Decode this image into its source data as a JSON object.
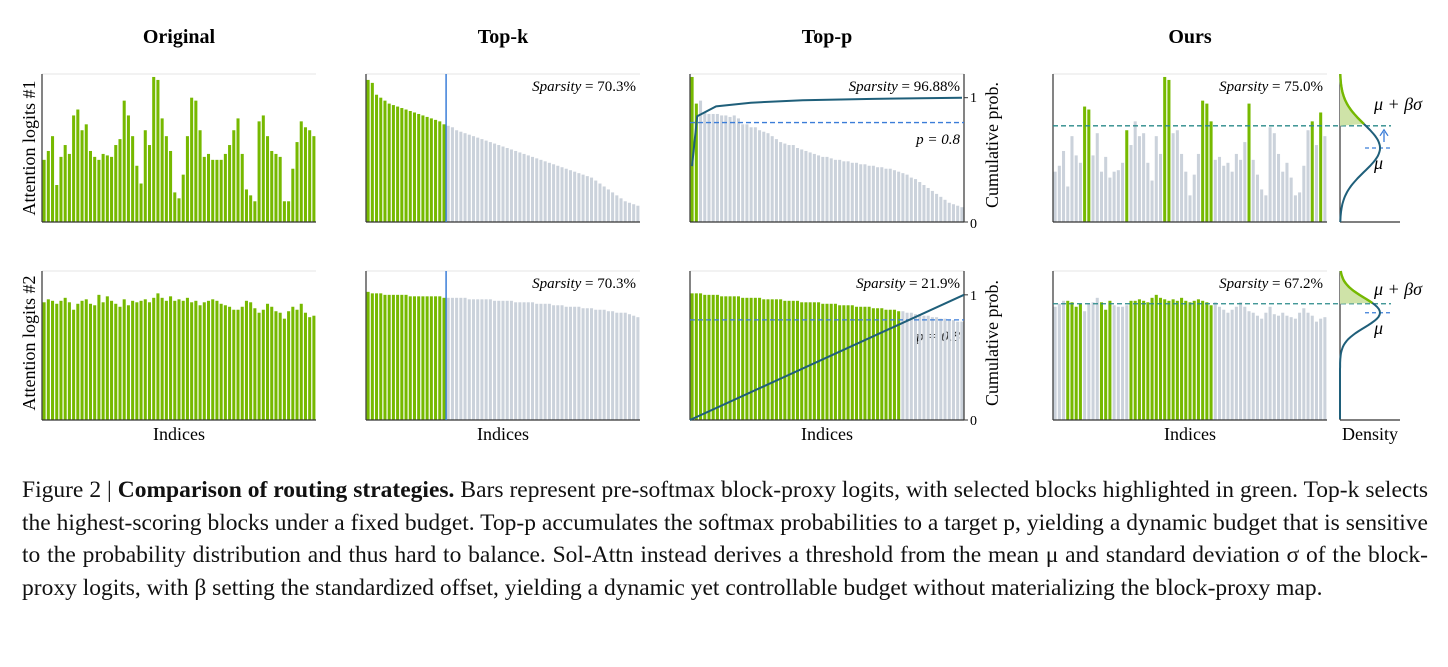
{
  "titles": [
    "Original",
    "Top-k",
    "Top-p",
    "Ours"
  ],
  "row_labels": [
    "Attention logits #1",
    "Attention logits #2"
  ],
  "x_label": "Indices",
  "density_label": "Density",
  "cum_label": "Cumulative prob.",
  "cum_ticks": [
    "0",
    "1"
  ],
  "p_label": "p = 0.8",
  "mu_label": "μ",
  "mu_beta_label": "μ + βσ",
  "colors": {
    "selected": "#76b900",
    "unselected": "#cbd2db",
    "curve": "#1f5f7a",
    "cut": "#3b7dd8"
  },
  "chart_data": [
    {
      "type": "bar",
      "panel": "Original, row 1",
      "values": [
        0.42,
        0.48,
        0.58,
        0.25,
        0.44,
        0.52,
        0.46,
        0.72,
        0.76,
        0.62,
        0.66,
        0.48,
        0.44,
        0.42,
        0.46,
        0.45,
        0.44,
        0.52,
        0.56,
        0.82,
        0.72,
        0.58,
        0.38,
        0.26,
        0.62,
        0.52,
        0.98,
        0.96,
        0.7,
        0.58,
        0.48,
        0.2,
        0.16,
        0.32,
        0.58,
        0.84,
        0.82,
        0.62,
        0.44,
        0.46,
        0.42,
        0.42,
        0.42,
        0.46,
        0.52,
        0.62,
        0.7,
        0.46,
        0.22,
        0.18,
        0.14,
        0.68,
        0.72,
        0.58,
        0.48,
        0.46,
        0.44,
        0.14,
        0.14,
        0.36,
        0.54,
        0.68,
        0.64,
        0.62,
        0.58
      ]
    },
    {
      "type": "bar",
      "panel": "Top-k, row 1",
      "sparsity": "70.3%",
      "values": [
        0.96,
        0.94,
        0.86,
        0.84,
        0.82,
        0.8,
        0.79,
        0.78,
        0.77,
        0.76,
        0.75,
        0.74,
        0.73,
        0.72,
        0.71,
        0.7,
        0.69,
        0.68,
        0.66,
        0.65,
        0.64,
        0.62,
        0.61,
        0.6,
        0.59,
        0.58,
        0.57,
        0.56,
        0.55,
        0.54,
        0.53,
        0.52,
        0.51,
        0.5,
        0.49,
        0.48,
        0.47,
        0.46,
        0.45,
        0.44,
        0.43,
        0.42,
        0.41,
        0.4,
        0.39,
        0.38,
        0.37,
        0.36,
        0.35,
        0.34,
        0.33,
        0.32,
        0.31,
        0.3,
        0.28,
        0.26,
        0.24,
        0.22,
        0.2,
        0.18,
        0.16,
        0.14,
        0.13,
        0.12,
        0.11
      ]
    },
    {
      "type": "bar",
      "panel": "Top-p, row 1",
      "sparsity": "96.88%",
      "values": [
        0.98,
        0.8,
        0.82,
        0.74,
        0.73,
        0.73,
        0.73,
        0.72,
        0.72,
        0.71,
        0.72,
        0.7,
        0.66,
        0.66,
        0.64,
        0.64,
        0.62,
        0.61,
        0.6,
        0.58,
        0.56,
        0.54,
        0.53,
        0.52,
        0.52,
        0.5,
        0.49,
        0.48,
        0.47,
        0.46,
        0.45,
        0.44,
        0.44,
        0.43,
        0.42,
        0.42,
        0.41,
        0.41,
        0.4,
        0.4,
        0.39,
        0.39,
        0.38,
        0.38,
        0.37,
        0.37,
        0.36,
        0.36,
        0.35,
        0.34,
        0.33,
        0.32,
        0.3,
        0.29,
        0.27,
        0.25,
        0.23,
        0.21,
        0.19,
        0.17,
        0.15,
        0.13,
        0.12,
        0.11,
        0.1
      ],
      "cumulative": [
        0.45,
        0.85,
        0.93,
        0.96,
        0.98,
        0.99,
        1.0
      ],
      "p_threshold": 0.8
    },
    {
      "type": "bar",
      "panel": "Ours, row 1",
      "sparsity": "75.0%",
      "values": [
        0.34,
        0.38,
        0.48,
        0.24,
        0.58,
        0.45,
        0.4,
        0.78,
        0.76,
        0.45,
        0.6,
        0.34,
        0.44,
        0.3,
        0.34,
        0.35,
        0.4,
        0.62,
        0.52,
        0.68,
        0.58,
        0.6,
        0.4,
        0.28,
        0.58,
        0.46,
        0.98,
        0.96,
        0.6,
        0.62,
        0.46,
        0.34,
        0.18,
        0.32,
        0.46,
        0.82,
        0.8,
        0.68,
        0.42,
        0.44,
        0.38,
        0.4,
        0.34,
        0.46,
        0.42,
        0.54,
        0.8,
        0.42,
        0.32,
        0.22,
        0.18,
        0.64,
        0.6,
        0.46,
        0.34,
        0.4,
        0.3,
        0.18,
        0.2,
        0.38,
        0.62,
        0.68,
        0.52,
        0.74,
        0.58
      ],
      "selected": [
        7,
        8,
        17,
        26,
        27,
        35,
        36,
        37,
        46,
        61,
        63
      ]
    },
    {
      "type": "bar",
      "panel": "Original, row 2",
      "values": [
        0.79,
        0.81,
        0.8,
        0.78,
        0.8,
        0.82,
        0.79,
        0.74,
        0.78,
        0.8,
        0.81,
        0.78,
        0.77,
        0.84,
        0.79,
        0.83,
        0.8,
        0.78,
        0.76,
        0.81,
        0.77,
        0.8,
        0.79,
        0.8,
        0.81,
        0.79,
        0.82,
        0.85,
        0.82,
        0.8,
        0.83,
        0.8,
        0.81,
        0.8,
        0.82,
        0.79,
        0.8,
        0.77,
        0.79,
        0.8,
        0.81,
        0.8,
        0.78,
        0.77,
        0.76,
        0.74,
        0.74,
        0.76,
        0.8,
        0.79,
        0.75,
        0.72,
        0.74,
        0.78,
        0.76,
        0.73,
        0.72,
        0.68,
        0.73,
        0.76,
        0.74,
        0.78,
        0.72,
        0.69,
        0.7
      ]
    },
    {
      "type": "bar",
      "panel": "Top-k, row 2",
      "sparsity": "70.3%",
      "values": [
        0.86,
        0.85,
        0.85,
        0.85,
        0.84,
        0.84,
        0.84,
        0.84,
        0.84,
        0.84,
        0.83,
        0.83,
        0.83,
        0.83,
        0.83,
        0.83,
        0.83,
        0.83,
        0.82,
        0.82,
        0.82,
        0.82,
        0.82,
        0.82,
        0.81,
        0.81,
        0.81,
        0.81,
        0.81,
        0.81,
        0.8,
        0.8,
        0.8,
        0.8,
        0.8,
        0.79,
        0.79,
        0.79,
        0.79,
        0.79,
        0.78,
        0.78,
        0.78,
        0.78,
        0.77,
        0.77,
        0.77,
        0.76,
        0.76,
        0.76,
        0.76,
        0.75,
        0.75,
        0.75,
        0.74,
        0.74,
        0.74,
        0.73,
        0.73,
        0.72,
        0.72,
        0.72,
        0.71,
        0.7,
        0.69
      ]
    },
    {
      "type": "bar",
      "panel": "Top-p, row 2",
      "sparsity": "21.9%",
      "values": [
        0.85,
        0.85,
        0.85,
        0.84,
        0.84,
        0.84,
        0.84,
        0.83,
        0.83,
        0.83,
        0.83,
        0.83,
        0.82,
        0.82,
        0.82,
        0.82,
        0.82,
        0.81,
        0.81,
        0.81,
        0.81,
        0.81,
        0.8,
        0.8,
        0.8,
        0.8,
        0.79,
        0.79,
        0.79,
        0.79,
        0.79,
        0.78,
        0.78,
        0.78,
        0.78,
        0.77,
        0.77,
        0.77,
        0.77,
        0.76,
        0.76,
        0.76,
        0.76,
        0.75,
        0.75,
        0.75,
        0.74,
        0.74,
        0.74,
        0.73,
        0.73,
        0.72,
        0.72,
        0.71,
        0.71,
        0.7,
        0.7,
        0.69,
        0.69,
        0.68,
        0.68,
        0.67,
        0.67,
        0.66,
        0.66
      ],
      "cumulative": [
        0.0,
        1.0
      ],
      "p_threshold": 0.8
    },
    {
      "type": "bar",
      "panel": "Ours, row 2",
      "sparsity": "67.2%",
      "values": [
        0.76,
        0.78,
        0.8,
        0.8,
        0.79,
        0.76,
        0.78,
        0.73,
        0.78,
        0.79,
        0.82,
        0.79,
        0.74,
        0.8,
        0.77,
        0.76,
        0.76,
        0.77,
        0.8,
        0.8,
        0.81,
        0.8,
        0.79,
        0.82,
        0.84,
        0.82,
        0.81,
        0.8,
        0.81,
        0.8,
        0.82,
        0.8,
        0.79,
        0.8,
        0.81,
        0.8,
        0.79,
        0.77,
        0.79,
        0.76,
        0.74,
        0.72,
        0.74,
        0.76,
        0.79,
        0.76,
        0.73,
        0.72,
        0.7,
        0.68,
        0.72,
        0.76,
        0.71,
        0.7,
        0.72,
        0.7,
        0.69,
        0.68,
        0.72,
        0.75,
        0.72,
        0.7,
        0.66,
        0.68,
        0.69
      ],
      "selected": [
        3,
        4,
        5,
        6,
        11,
        12,
        13,
        18,
        19,
        20,
        21,
        22,
        23,
        24,
        25,
        26,
        27,
        28,
        29,
        30,
        31,
        32,
        33,
        34,
        35,
        36,
        37
      ]
    }
  ],
  "caption": {
    "fig_label": "Figure 2 | ",
    "bold": "Comparison of routing strategies.",
    "body": " Bars represent pre-softmax block-proxy logits, with selected blocks highlighted in green. Top-k selects the highest-scoring blocks under a fixed budget. Top-p accumulates the softmax probabilities to a target p, yielding a dynamic budget that is sensitive to the probability distribution and thus hard to balance. Sol-Attn instead derives a threshold from the mean μ and standard deviation σ of the block-proxy logits, with β setting the standardized offset, yielding a dynamic yet controllable budget without materializing the block-proxy map."
  }
}
